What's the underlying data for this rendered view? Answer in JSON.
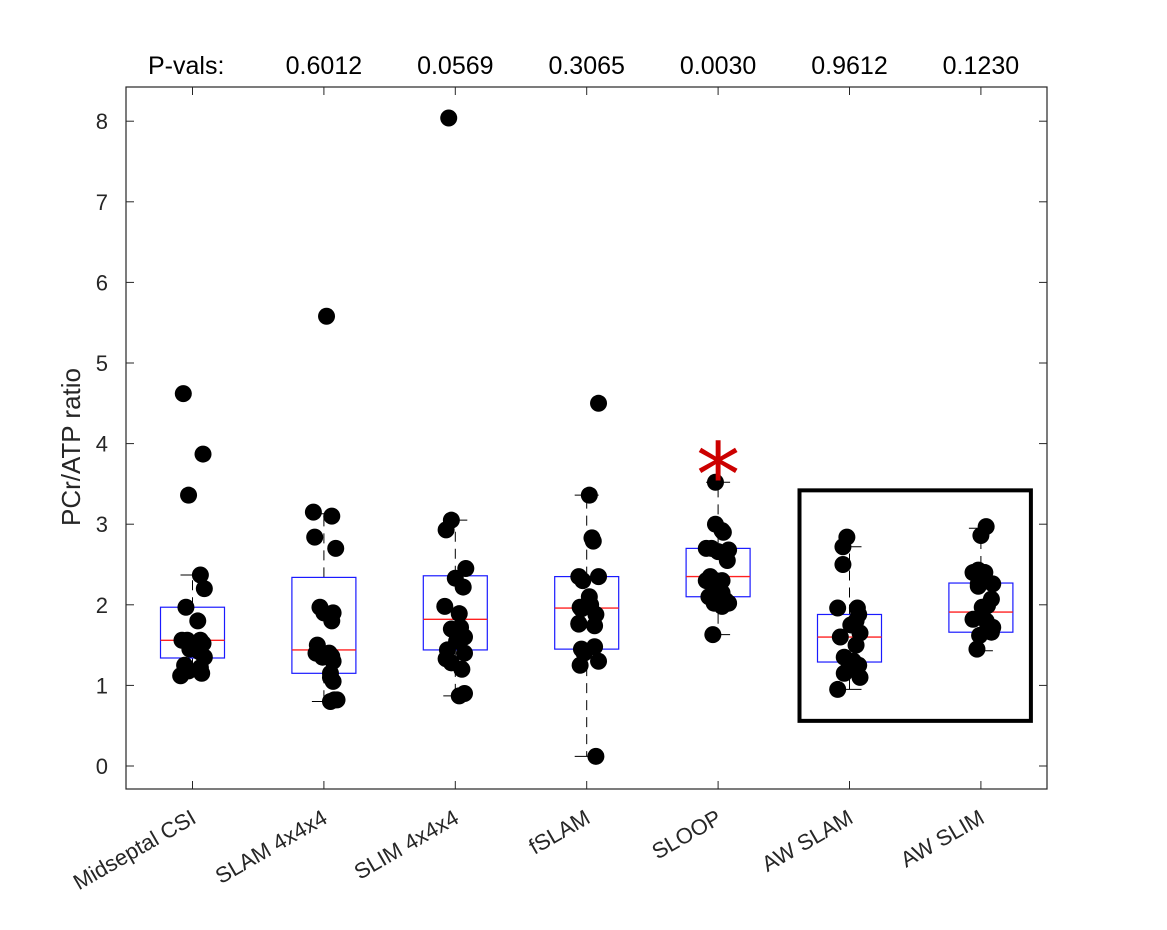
{
  "chart_data": {
    "type": "box",
    "title": "",
    "xlabel": "",
    "ylabel": "PCr/ATP ratio",
    "ylim": [
      -0.3,
      8.4
    ],
    "yticks": [
      0,
      1,
      2,
      3,
      4,
      5,
      6,
      7,
      8
    ],
    "ytick_labels": [
      "0",
      "1",
      "2",
      "3",
      "4",
      "5",
      "6",
      "7",
      "8"
    ],
    "pval_header": "P-vals:",
    "significance_marker": "*",
    "significant_category": "SLOOP",
    "highlight_box_categories": [
      "AW SLAM",
      "AW SLIM"
    ],
    "categories": [
      "Midseptal CSI",
      "SLAM 4x4x4",
      "SLIM 4x4x4",
      "fSLAM",
      "SLOOP",
      "AW SLAM",
      "AW SLIM"
    ],
    "pvals": [
      "",
      "0.6012",
      "0.0569",
      "0.3065",
      "0.0030",
      "0.9612",
      "0.1230"
    ],
    "boxes": [
      {
        "category": "Midseptal CSI",
        "q1": 1.34,
        "median": 1.56,
        "q3": 1.97,
        "whisker_low": 1.14,
        "whisker_high": 2.37
      },
      {
        "category": "SLAM 4x4x4",
        "q1": 1.15,
        "median": 1.44,
        "q3": 2.34,
        "whisker_low": 0.8,
        "whisker_high": 3.13
      },
      {
        "category": "SLIM 4x4x4",
        "q1": 1.44,
        "median": 1.82,
        "q3": 2.36,
        "whisker_low": 0.87,
        "whisker_high": 3.05
      },
      {
        "category": "fSLAM",
        "q1": 1.45,
        "median": 1.96,
        "q3": 2.35,
        "whisker_low": 0.12,
        "whisker_high": 3.36
      },
      {
        "category": "SLOOP",
        "q1": 2.1,
        "median": 2.35,
        "q3": 2.7,
        "whisker_low": 1.63,
        "whisker_high": 3.52
      },
      {
        "category": "AW SLAM",
        "q1": 1.29,
        "median": 1.6,
        "q3": 1.88,
        "whisker_low": 0.95,
        "whisker_high": 2.72
      },
      {
        "category": "AW SLIM",
        "q1": 1.66,
        "median": 1.91,
        "q3": 2.27,
        "whisker_low": 1.43,
        "whisker_high": 2.95
      }
    ],
    "points": [
      {
        "category": "Midseptal CSI",
        "jitter": [
          -0.07,
          0.08,
          -0.03,
          0.06,
          0.09,
          -0.05,
          0.04,
          -0.04,
          0.08,
          0.06,
          -0.08,
          0.02,
          -0.02,
          0.05,
          0.09,
          -0.06,
          0.06,
          -0.03,
          0.07,
          -0.09
        ],
        "values": [
          4.62,
          3.87,
          3.36,
          2.37,
          2.2,
          1.97,
          1.8,
          1.56,
          1.52,
          1.56,
          1.56,
          1.48,
          1.45,
          1.42,
          1.35,
          1.25,
          1.22,
          1.18,
          1.15,
          1.12
        ]
      },
      {
        "category": "SLAM 4x4x4",
        "jitter": [
          0.02,
          -0.08,
          0.06,
          -0.07,
          0.09,
          -0.03,
          0.0,
          0.07,
          0.06,
          -0.05,
          0.04,
          -0.06,
          0.06,
          -0.01,
          0.07,
          0.05,
          0.05,
          0.07,
          0.08,
          0.05,
          0.1
        ],
        "values": [
          5.58,
          3.15,
          3.1,
          2.84,
          2.7,
          1.97,
          1.9,
          1.9,
          1.8,
          1.5,
          1.4,
          1.4,
          1.36,
          1.35,
          1.3,
          1.15,
          1.1,
          1.05,
          0.82,
          0.8,
          0.82
        ]
      },
      {
        "category": "SLIM 4x4x4",
        "jitter": [
          -0.05,
          -0.03,
          -0.07,
          0.08,
          0.0,
          0.06,
          -0.08,
          0.03,
          0.04,
          -0.03,
          0.07,
          0.01,
          0.05,
          -0.06,
          0.07,
          -0.07,
          -0.03,
          0.05,
          0.03,
          0.07
        ],
        "values": [
          8.04,
          3.05,
          2.93,
          2.45,
          2.33,
          2.22,
          1.98,
          1.89,
          1.72,
          1.7,
          1.6,
          1.55,
          1.62,
          1.44,
          1.4,
          1.33,
          1.28,
          1.2,
          0.87,
          0.9
        ]
      },
      {
        "category": "fSLAM",
        "jitter": [
          0.09,
          0.02,
          0.04,
          0.05,
          -0.06,
          0.09,
          -0.03,
          0.02,
          0.03,
          -0.05,
          -0.04,
          0.07,
          -0.06,
          0.06,
          -0.06,
          0.06,
          -0.04,
          -0.02,
          0.09,
          -0.05,
          0.07
        ],
        "values": [
          4.5,
          3.36,
          2.83,
          2.79,
          2.35,
          2.35,
          2.3,
          2.1,
          2.0,
          1.97,
          1.95,
          1.88,
          1.77,
          1.74,
          1.76,
          1.48,
          1.45,
          1.4,
          1.3,
          1.25,
          0.12
        ]
      },
      {
        "category": "SLOOP",
        "jitter": [
          -0.02,
          -0.02,
          0.03,
          0.04,
          -0.09,
          0.08,
          -0.05,
          0.0,
          0.07,
          -0.06,
          -0.02,
          0.03,
          0.03,
          -0.09,
          0.0,
          -0.07,
          0.06,
          0.08,
          0.03,
          -0.03,
          -0.04
        ],
        "values": [
          3.52,
          3.0,
          2.92,
          2.9,
          2.7,
          2.68,
          2.7,
          2.66,
          2.55,
          2.35,
          2.3,
          2.3,
          2.15,
          2.3,
          2.2,
          2.1,
          2.05,
          2.02,
          1.98,
          2.02,
          1.63
        ]
      },
      {
        "category": "AW SLAM",
        "jitter": [
          -0.02,
          -0.05,
          -0.05,
          0.06,
          -0.09,
          0.07,
          0.05,
          0.01,
          0.08,
          -0.07,
          0.05,
          -0.04,
          0.03,
          0.07,
          -0.01,
          -0.04,
          0.08,
          -0.09
        ],
        "values": [
          2.84,
          2.72,
          2.5,
          1.96,
          1.96,
          1.88,
          1.8,
          1.75,
          1.65,
          1.6,
          1.5,
          1.35,
          1.3,
          1.25,
          1.2,
          1.15,
          1.1,
          0.95
        ]
      },
      {
        "category": "AW SLIM",
        "jitter": [
          0.04,
          0.0,
          -0.02,
          0.03,
          -0.06,
          0.09,
          -0.02,
          -0.02,
          0.08,
          0.05,
          0.01,
          -0.06,
          0.04,
          0.09,
          0.07,
          -0.01,
          0.08,
          0.05,
          -0.03
        ],
        "values": [
          2.97,
          2.86,
          2.43,
          2.4,
          2.4,
          2.26,
          2.26,
          2.23,
          2.07,
          1.99,
          1.97,
          1.82,
          1.8,
          1.72,
          1.67,
          1.62,
          1.66,
          1.7,
          1.45
        ]
      }
    ],
    "colors": {
      "box": "#1a1aff",
      "median": "#ff2020",
      "whisker": "#000000",
      "points": "#000000",
      "significance": "#cc0000",
      "axis": "#262626",
      "highlight_box": "#000000"
    }
  }
}
